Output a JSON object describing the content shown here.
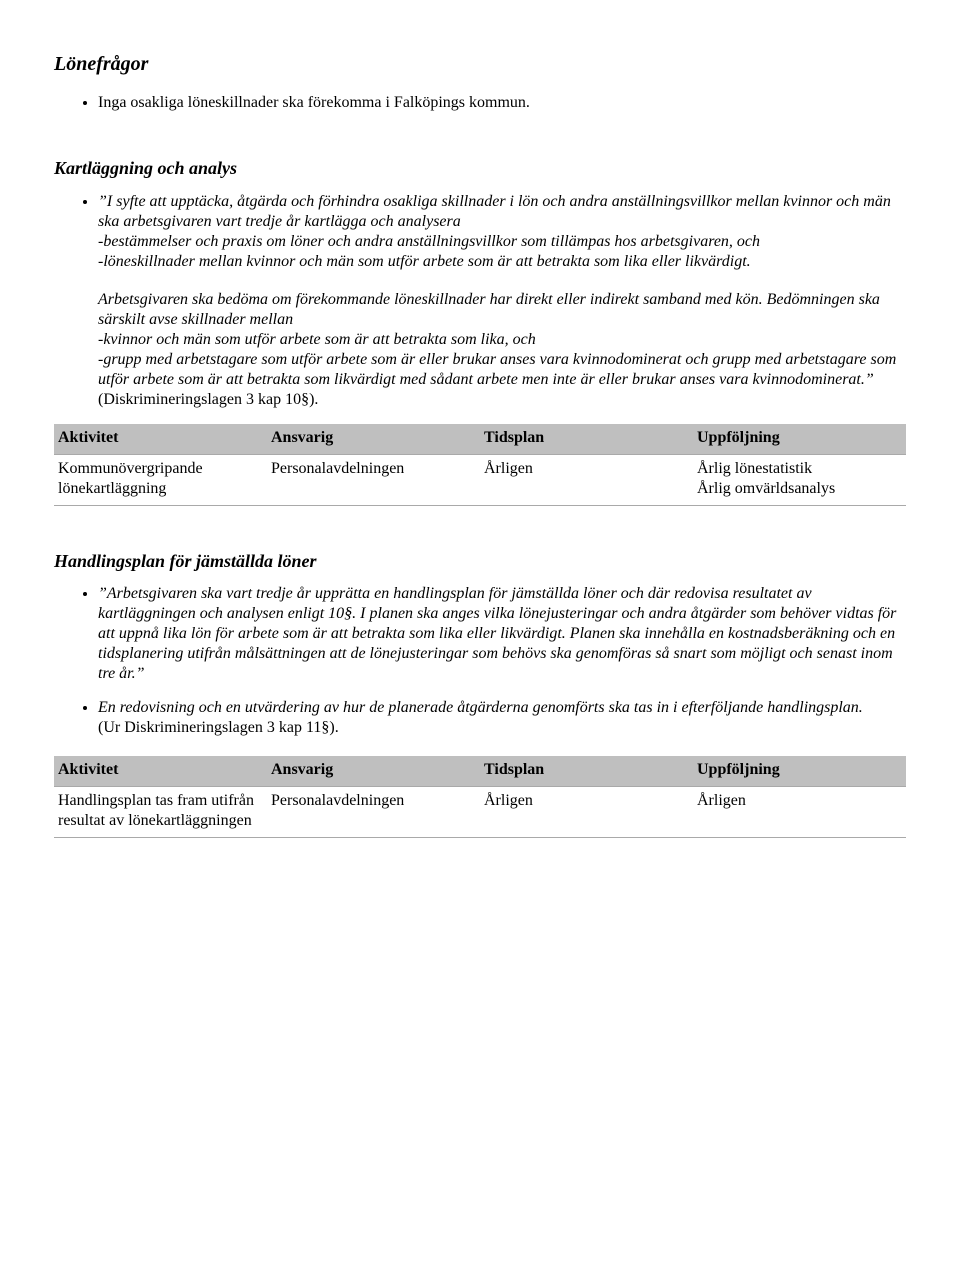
{
  "section1": {
    "heading": "Lönefrågor",
    "bullets": [
      "Inga osakliga löneskillnader ska förekomma i Falköpings kommun."
    ],
    "sub_heading": "Kartläggning och analys",
    "sub_bullets": [
      {
        "quote_open": "I syfte att upptäcka, åtgärda och förhindra osakliga skillnader i lön och andra anställningsvillkor mellan kvinnor och män ska arbetsgivaren vart tredje år kartlägga och analysera",
        "lines_italic": [
          "-bestämmelser och praxis om löner och andra anställningsvillkor som tillämpas hos arbetsgivaren, och",
          "-löneskillnader mellan kvinnor och män som utför arbete som är att betrakta som lika eller likvärdigt."
        ]
      }
    ],
    "para1_italic": "Arbetsgivaren ska bedöma om förekommande löneskillnader har direkt eller indirekt samband med kön. Bedömningen ska särskilt avse skillnader mellan",
    "para1_lines_italic": [
      "-kvinnor och män som utför arbete som är att betrakta som lika, och",
      "-grupp med arbetstagare som utför arbete som är eller brukar anses vara kvinnodominerat och grupp med arbetstagare som utför arbete som är att betrakta som likvärdigt med sådant arbete men inte är eller brukar anses vara kvinnodominerat.”"
    ],
    "para1_tail_plain": "(Diskrimineringslagen 3 kap 10§)."
  },
  "table1": {
    "headers": [
      "Aktivitet",
      "Ansvarig",
      "Tidsplan",
      "Uppföljning"
    ],
    "rows": [
      [
        "Kommunövergripande lönekartläggning",
        "Personalavdelningen",
        "Årligen",
        "Årlig lönestatistik\nÅrlig omvärldsanalys"
      ]
    ]
  },
  "section2": {
    "heading": "Handlingsplan för jämställda löner",
    "bullets": [
      {
        "italic": "”Arbetsgivaren ska vart tredje år upprätta en handlingsplan för jämställda löner och där redovisa resultatet av kartläggningen och analysen enligt 10§. I planen ska anges vilka lönejusteringar och andra åtgärder som behöver vidtas för att uppnå lika lön för arbete som är att betrakta som lika eller likvärdigt. Planen ska innehålla en kostnadsberäkning och en tidsplanering utifrån målsättningen att de lönejusteringar som behövs ska genomföras så snart som möjligt och senast inom tre år.”"
      },
      {
        "italic": "En redovisning och en utvärdering av hur de planerade åtgärderna genomförts ska tas in i efterföljande handlingsplan.",
        "plain": "(Ur Diskrimineringslagen 3 kap 11§)."
      }
    ]
  },
  "table2": {
    "headers": [
      "Aktivitet",
      "Ansvarig",
      "Tidsplan",
      "Uppföljning"
    ],
    "rows": [
      [
        "Handlingsplan tas fram utifrån resultat av lönekartläggningen",
        "Personalavdelningen",
        "Årligen",
        "Årligen"
      ]
    ]
  }
}
